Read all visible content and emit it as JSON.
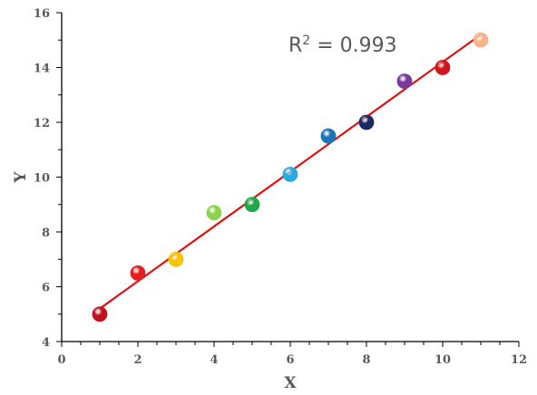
{
  "chart_data": {
    "type": "scatter",
    "xlabel": "X",
    "ylabel": "Y",
    "xlim": [
      0,
      12
    ],
    "ylim": [
      4,
      16
    ],
    "x_ticks": [
      0,
      2,
      4,
      6,
      8,
      10,
      12
    ],
    "y_ticks": [
      4,
      6,
      8,
      10,
      12,
      14,
      16
    ],
    "grid": false,
    "annotation": {
      "prefix": "R",
      "superscript": "2",
      "suffix": " = 0.993"
    },
    "points": [
      {
        "x": 1,
        "y": 5.0,
        "color": "#c0141c"
      },
      {
        "x": 2,
        "y": 6.5,
        "color": "#e81c1c"
      },
      {
        "x": 3,
        "y": 7.0,
        "color": "#f5c400"
      },
      {
        "x": 4,
        "y": 8.7,
        "color": "#8fd14f"
      },
      {
        "x": 5,
        "y": 9.0,
        "color": "#1fa84a"
      },
      {
        "x": 6,
        "y": 10.1,
        "color": "#29aae1"
      },
      {
        "x": 7,
        "y": 11.5,
        "color": "#1b73b8"
      },
      {
        "x": 8,
        "y": 12.0,
        "color": "#1b2a5e"
      },
      {
        "x": 9,
        "y": 13.5,
        "color": "#7a3a9c"
      },
      {
        "x": 10,
        "y": 14.0,
        "color": "#d0151c"
      },
      {
        "x": 11,
        "y": 15.0,
        "color": "#f6b48a"
      }
    ],
    "trendline": {
      "x_start": 1,
      "y_start": 5.2,
      "x_end": 11,
      "y_end": 15.2,
      "color": "#e01010"
    },
    "axis_color": "#000000"
  }
}
